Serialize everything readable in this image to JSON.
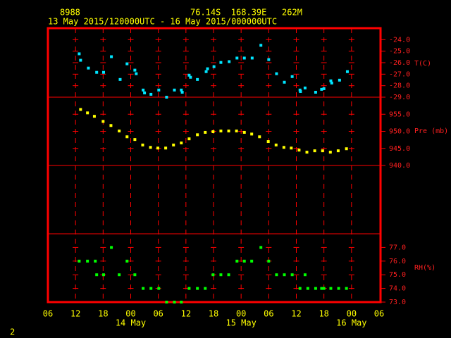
{
  "header": {
    "station": "8988",
    "location": "76.14S  168.39E   262M",
    "period": "13 May 2015/120000UTC - 16 May 2015/000000UTC"
  },
  "page_number": "2",
  "x_axis": {
    "xlim": [
      6,
      78
    ],
    "xticks": [
      {
        "value": 6,
        "label": "06"
      },
      {
        "value": 12,
        "label": "12"
      },
      {
        "value": 18,
        "label": "18"
      },
      {
        "value": 24,
        "label": "00"
      },
      {
        "value": 30,
        "label": "06"
      },
      {
        "value": 36,
        "label": "12"
      },
      {
        "value": 42,
        "label": "18"
      },
      {
        "value": 48,
        "label": "00"
      },
      {
        "value": 54,
        "label": "06"
      },
      {
        "value": 60,
        "label": "12"
      },
      {
        "value": 66,
        "label": "18"
      },
      {
        "value": 72,
        "label": "00"
      },
      {
        "value": 78,
        "label": "06"
      }
    ],
    "date_labels": [
      {
        "value": 24,
        "label": "14 May"
      },
      {
        "value": 48,
        "label": "15 May"
      },
      {
        "value": 72,
        "label": "16 May"
      }
    ]
  },
  "chart_data": [
    {
      "type": "scatter",
      "label": "T(C)",
      "color": "#00e5ff",
      "ylim": [
        -29,
        -23
      ],
      "yticks": [
        {
          "value": -24,
          "label": "-24.0"
        },
        {
          "value": -25,
          "label": "-25.0"
        },
        {
          "value": -26,
          "label": "-26.0"
        },
        {
          "value": -27,
          "label": "-27.0"
        },
        {
          "value": -28,
          "label": "-28.0"
        },
        {
          "value": -29,
          "label": "-29.0"
        }
      ],
      "x": [
        12.8,
        13.1,
        14.8,
        16.6,
        18.1,
        19.8,
        21.7,
        23.2,
        24.9,
        25.2,
        26.7,
        27.0,
        28.4,
        30.1,
        31.8,
        33.5,
        35.0,
        35.2,
        36.7,
        37.0,
        38.5,
        40.4,
        40.7,
        42.1,
        43.6,
        45.4,
        47.1,
        48.7,
        50.4,
        52.3,
        54.0,
        55.7,
        57.4,
        59.1,
        60.8,
        60.9,
        61.9,
        64.2,
        65.5,
        66.0,
        67.5,
        67.7,
        69.4,
        71.1
      ],
      "values": [
        -25.23,
        -25.79,
        -26.47,
        -26.84,
        -26.84,
        -25.48,
        -27.46,
        -26.1,
        -26.65,
        -26.96,
        -28.38,
        -28.63,
        -28.75,
        -28.38,
        -29.0,
        -28.38,
        -28.38,
        -28.57,
        -27.09,
        -27.27,
        -27.46,
        -26.78,
        -26.53,
        -26.35,
        -25.98,
        -25.91,
        -25.6,
        -25.6,
        -25.6,
        -24.49,
        -25.73,
        -26.96,
        -27.7,
        -27.21,
        -28.38,
        -28.51,
        -28.2,
        -28.57,
        -28.32,
        -28.26,
        -27.58,
        -27.77,
        -27.52,
        -26.78
      ]
    },
    {
      "type": "scatter",
      "label": "Pre (mb)",
      "color": "#ffff00",
      "ylim": [
        940,
        960
      ],
      "yticks": [
        {
          "value": 955,
          "label": "955.0"
        },
        {
          "value": 950,
          "label": "950.0"
        },
        {
          "value": 945,
          "label": "945.0"
        },
        {
          "value": 940,
          "label": "940.0"
        }
      ],
      "x": [
        13.1,
        14.6,
        16.1,
        18.0,
        19.7,
        21.5,
        23.2,
        24.9,
        26.6,
        28.3,
        29.9,
        31.6,
        33.3,
        35.0,
        36.7,
        38.5,
        40.2,
        41.9,
        43.6,
        45.3,
        47.0,
        48.7,
        50.3,
        52.0,
        53.9,
        55.6,
        57.3,
        58.9,
        60.6,
        62.3,
        64.0,
        65.7,
        67.4,
        69.1,
        70.9
      ],
      "values": [
        956.4,
        955.4,
        954.4,
        952.9,
        951.7,
        950.1,
        948.4,
        947.6,
        946.0,
        945.3,
        945.1,
        945.1,
        946.0,
        946.6,
        947.8,
        949.0,
        949.7,
        949.9,
        950.1,
        950.1,
        950.1,
        949.7,
        949.2,
        948.4,
        947.0,
        946.0,
        945.3,
        945.1,
        944.5,
        943.9,
        944.3,
        944.3,
        943.9,
        944.3,
        944.9
      ]
    },
    {
      "type": "scatter",
      "label": "RH(%)",
      "color": "#00ff00",
      "ylim": [
        73,
        78
      ],
      "yticks": [
        {
          "value": 77,
          "label": "77.0"
        },
        {
          "value": 76,
          "label": "76.0"
        },
        {
          "value": 75,
          "label": "75.0"
        },
        {
          "value": 74,
          "label": "74.0"
        },
        {
          "value": 73,
          "label": "73.0"
        }
      ],
      "x": [
        12.8,
        14.6,
        16.3,
        16.6,
        18.1,
        19.8,
        21.5,
        23.2,
        24.9,
        26.7,
        28.4,
        30.1,
        31.8,
        33.5,
        35.0,
        36.7,
        38.5,
        40.2,
        41.9,
        43.6,
        45.3,
        47.1,
        48.7,
        50.3,
        52.3,
        54.0,
        55.7,
        57.4,
        59.1,
        60.8,
        61.9,
        62.5,
        64.2,
        65.5,
        66.0,
        67.5,
        69.2,
        70.9
      ],
      "values": [
        76,
        76,
        76,
        75,
        75,
        77,
        75,
        76,
        75,
        74,
        74,
        74,
        73,
        73,
        73,
        74,
        74,
        74,
        75,
        75,
        75,
        76,
        76,
        76,
        77,
        76,
        75,
        75,
        75,
        74,
        75,
        74,
        74,
        74,
        74,
        74,
        74,
        74
      ]
    }
  ]
}
